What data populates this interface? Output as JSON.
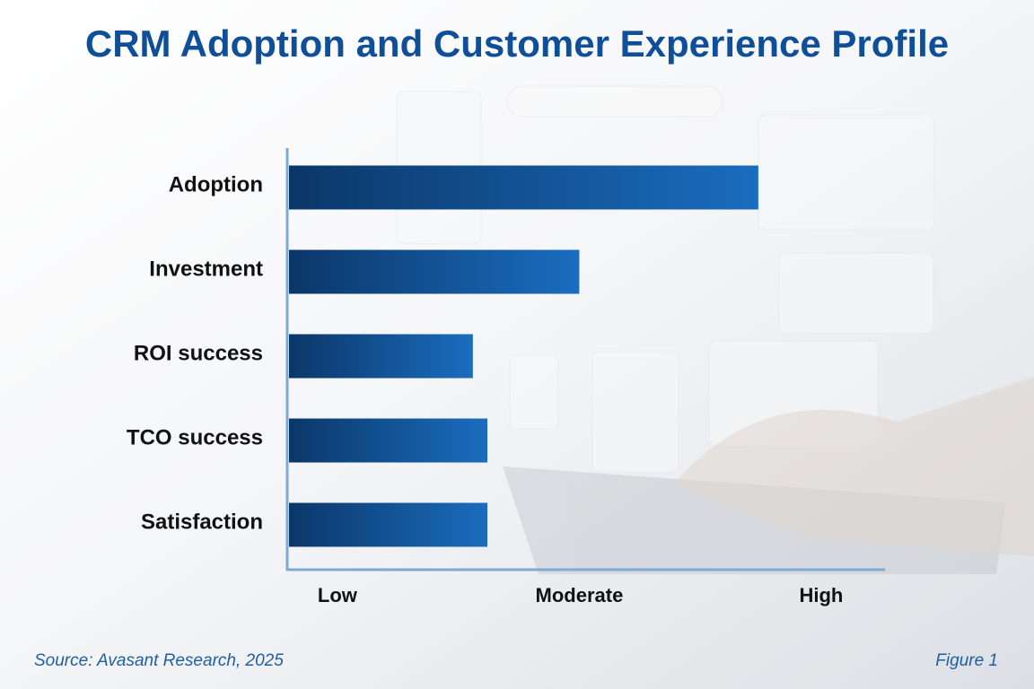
{
  "chart_data": {
    "type": "hbar",
    "title": "CRM Adoption and Customer Experience Profile",
    "categories": [
      "Adoption",
      "Investment",
      "ROI success",
      "TCO success",
      "Satisfaction"
    ],
    "values": [
      2.74,
      2.0,
      1.56,
      1.62,
      1.62
    ],
    "colors": [
      "#0b3768",
      "#1a6dbf"
    ],
    "xlim": [
      0.8,
      3.26
    ],
    "xticks": [
      {
        "value": 1,
        "label": "Low"
      },
      {
        "value": 2,
        "label": "Moderate"
      },
      {
        "value": 3,
        "label": "High"
      }
    ],
    "grid": false,
    "source": "Source: Avasant Research, 2025",
    "figure_label": "Figure 1"
  }
}
